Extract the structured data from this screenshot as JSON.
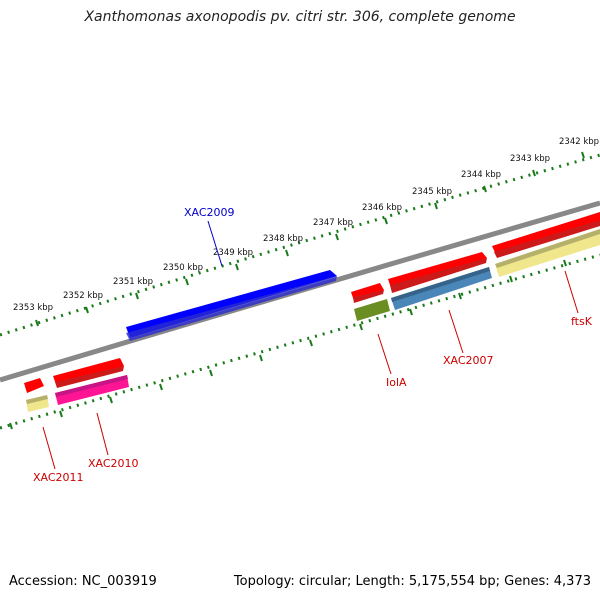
{
  "title": "Xanthomonas axonopodis pv. citri str. 306, complete genome",
  "footer": {
    "accession": "Accession: NC_003919",
    "topology": "Topology: circular; Length: 5,175,554 bp; Genes: 4,373"
  },
  "colors": {
    "backbone": "#888888",
    "ticks": "#1a7a1a",
    "gene_red": "#ff0000",
    "gene_blue": "#0000ff",
    "gene_steelblue": "#4a86b8",
    "gene_olive": "#6b8e23",
    "gene_khaki": "#f0e68c",
    "gene_magenta": "#ff1493",
    "label_red": "#cc0000",
    "label_blue": "#0000cc"
  },
  "kbp_labels": [
    "2342 kbp",
    "2343 kbp",
    "2344 kbp",
    "2345 kbp",
    "2346 kbp",
    "2347 kbp",
    "2348 kbp",
    "2349 kbp",
    "2350 kbp",
    "2351 kbp",
    "2352 kbp",
    "2353 kbp"
  ],
  "gene_labels": {
    "xac2009": "XAC2009",
    "xac2007": "XAC2007",
    "ftsk": "ftsK",
    "iola": "IolA",
    "xac2010": "XAC2010",
    "xac2011": "XAC2011"
  }
}
